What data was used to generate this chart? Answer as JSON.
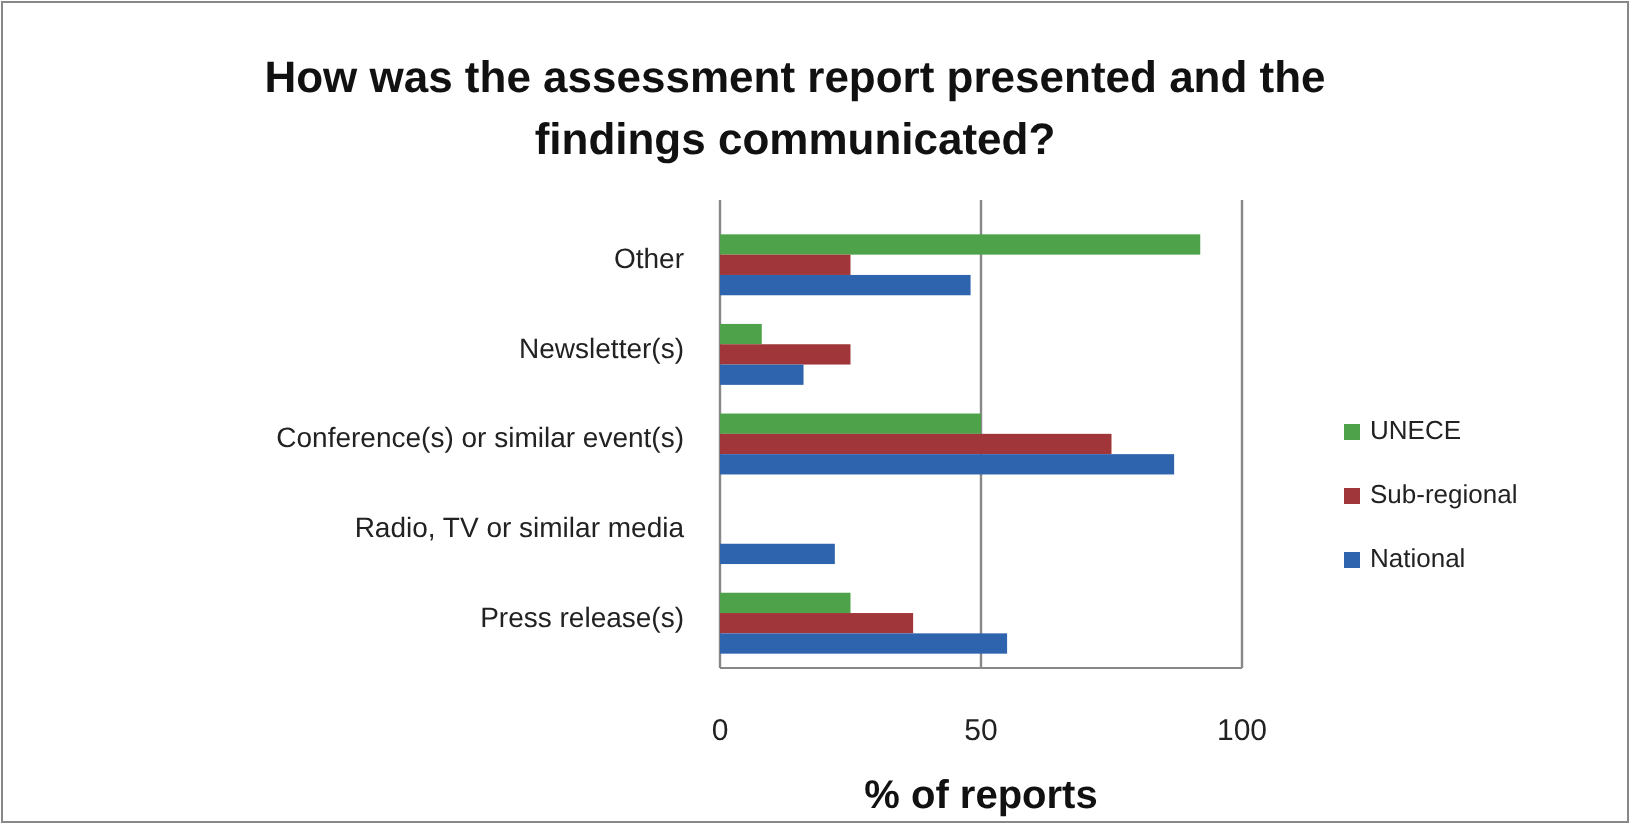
{
  "chart_data": {
    "type": "bar",
    "orientation": "horizontal",
    "title": "How was the assessment report presented and the findings communicated?",
    "xlabel": "% of reports",
    "categories": [
      "Other",
      "Newsletter(s)",
      "Conference(s) or similar event(s)",
      "Radio, TV or similar media",
      "Press release(s)"
    ],
    "series": [
      {
        "name": "UNECE",
        "color": "#4ea24a",
        "values": [
          92,
          8,
          50,
          0,
          25
        ]
      },
      {
        "name": "Sub-regional",
        "color": "#a0363a",
        "values": [
          25,
          25,
          75,
          0,
          37
        ]
      },
      {
        "name": "National",
        "color": "#2e63ad",
        "values": [
          48,
          16,
          87,
          22,
          55
        ]
      }
    ],
    "xlim": [
      0,
      100
    ],
    "xticks": [
      0,
      50,
      100
    ],
    "grid": "x",
    "legend": "right"
  }
}
